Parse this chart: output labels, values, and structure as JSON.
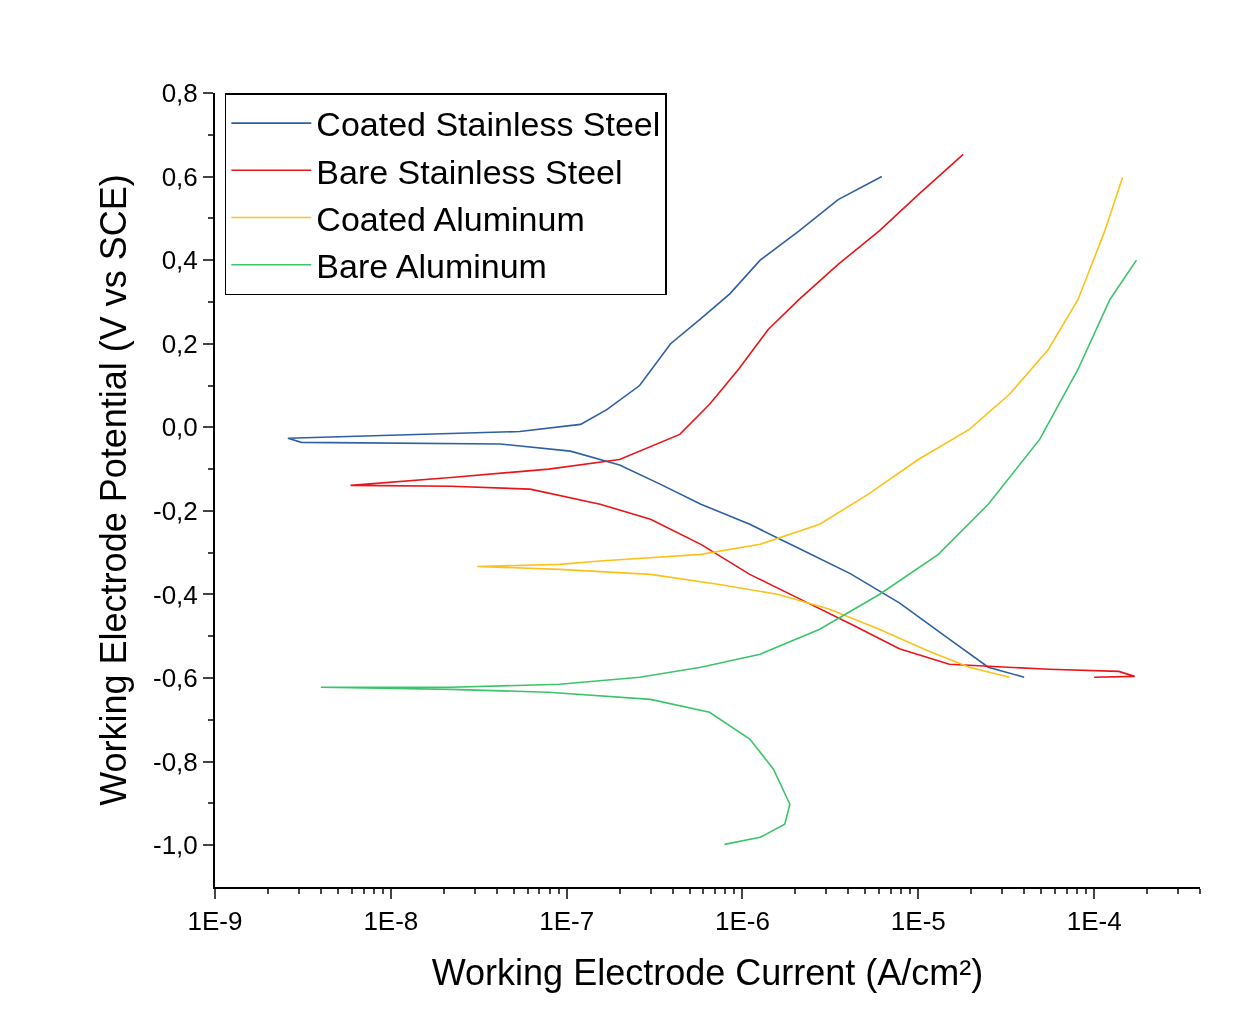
{
  "chart_data": {
    "type": "line",
    "xlabel": "Working Electrode Current (A/cm²)",
    "ylabel": "Working Electrode Potential (V vs SCE)",
    "log": "x",
    "legend": "top left",
    "marker": "none",
    "line_style": "solid",
    "xlim": [
      1e-09,
      0.0004
    ],
    "ylim": [
      -1.1,
      0.8
    ],
    "xticks": [
      {
        "value": 1e-09,
        "label": "1E-9"
      },
      {
        "value": 1e-08,
        "label": "1E-8"
      },
      {
        "value": 1e-07,
        "label": "1E-7"
      },
      {
        "value": 1e-06,
        "label": "1E-6"
      },
      {
        "value": 1e-05,
        "label": "1E-5"
      },
      {
        "value": 0.0001,
        "label": "1E-4"
      }
    ],
    "yticks": [
      {
        "value": -1.0,
        "label": "-1,0"
      },
      {
        "value": -0.8,
        "label": "-0,8"
      },
      {
        "value": -0.6,
        "label": "-0,6"
      },
      {
        "value": -0.4,
        "label": "-0,4"
      },
      {
        "value": -0.2,
        "label": "-0,2"
      },
      {
        "value": 0.0,
        "label": "0,0"
      },
      {
        "value": 0.2,
        "label": "0,2"
      },
      {
        "value": 0.4,
        "label": "0,4"
      },
      {
        "value": 0.6,
        "label": "0,6"
      },
      {
        "value": 0.8,
        "label": "0,8"
      }
    ],
    "series": [
      {
        "name": "Coated Stainless Steel",
        "color": "#2e5fa3",
        "x": [
          4e-05,
          2.5e-05,
          1.5e-05,
          7.8e-06,
          4.1e-06,
          2.1e-06,
          1.1e-06,
          5.8e-07,
          3.4e-07,
          2e-07,
          1.05e-07,
          4.2e-08,
          3.1e-09,
          2.6e-09,
          5.4e-08,
          1.2e-07,
          1.7e-07,
          2.6e-07,
          3.9e-07,
          5.8e-07,
          8.5e-07,
          1.26e-06,
          2.1e-06,
          3.5e-06,
          6.2e-06
        ],
        "values": [
          -0.598,
          -0.574,
          -0.507,
          -0.42,
          -0.35,
          -0.29,
          -0.232,
          -0.184,
          -0.136,
          -0.09,
          -0.057,
          -0.04,
          -0.036,
          -0.026,
          -0.01,
          0.007,
          0.043,
          0.1,
          0.2,
          0.26,
          0.32,
          0.4,
          0.47,
          0.545,
          0.6
        ]
      },
      {
        "name": "Bare Stainless Steel",
        "color": "#e8151b",
        "x": [
          0.0001,
          0.00017,
          0.000138,
          5.5e-05,
          1.5e-05,
          7.8e-06,
          4.1e-06,
          2.1e-06,
          1.1e-06,
          5.8e-07,
          3e-07,
          1.55e-07,
          6.2e-08,
          2.2e-08,
          5.9e-09,
          2.2e-08,
          7.9e-08,
          2e-07,
          4.4e-07,
          6.5e-07,
          9.5e-07,
          1.4e-06,
          2.1e-06,
          3.5e-06,
          6e-06,
          1e-05,
          1.8e-05
        ],
        "values": [
          -0.598,
          -0.596,
          -0.584,
          -0.579,
          -0.567,
          -0.53,
          -0.47,
          -0.41,
          -0.352,
          -0.28,
          -0.22,
          -0.184,
          -0.148,
          -0.141,
          -0.139,
          -0.12,
          -0.1,
          -0.077,
          -0.017,
          0.055,
          0.139,
          0.234,
          0.306,
          0.39,
          0.47,
          0.557,
          0.653
        ]
      },
      {
        "name": "Coated Aluminum",
        "color": "#fcc11a",
        "x": [
          3.3e-05,
          1.95e-05,
          1.15e-05,
          6e-06,
          3.1e-06,
          1.6e-06,
          7.4e-07,
          3e-07,
          9.1e-08,
          3.1e-08,
          9.1e-08,
          1.55e-07,
          5.8e-07,
          1.26e-06,
          2.75e-06,
          5.2e-06,
          1e-05,
          1.95e-05,
          3.3e-05,
          5.5e-05,
          8.1e-05,
          0.000115,
          0.000145
        ],
        "values": [
          -0.598,
          -0.574,
          -0.536,
          -0.483,
          -0.435,
          -0.4,
          -0.376,
          -0.352,
          -0.34,
          -0.333,
          -0.328,
          -0.32,
          -0.304,
          -0.28,
          -0.232,
          -0.16,
          -0.077,
          -0.005,
          0.079,
          0.187,
          0.306,
          0.47,
          0.598
        ]
      },
      {
        "name": "Bare Aluminum",
        "color": "#3cc46a",
        "x": [
          7.9e-07,
          1.26e-06,
          1.74e-06,
          1.86e-06,
          1.5e-06,
          1.1e-06,
          6.5e-07,
          3e-07,
          7.9e-08,
          2.2e-08,
          4e-09,
          2.2e-08,
          9.1e-08,
          2.6e-07,
          5.8e-07,
          1.26e-06,
          2.75e-06,
          6e-06,
          1.3e-05,
          2.5e-05,
          4.9e-05,
          8.1e-05,
          0.000123,
          0.000174
        ],
        "values": [
          -0.998,
          -0.981,
          -0.95,
          -0.902,
          -0.818,
          -0.746,
          -0.682,
          -0.651,
          -0.634,
          -0.627,
          -0.622,
          -0.622,
          -0.615,
          -0.598,
          -0.574,
          -0.543,
          -0.483,
          -0.4,
          -0.304,
          -0.184,
          -0.029,
          0.139,
          0.306,
          0.4
        ]
      }
    ]
  }
}
